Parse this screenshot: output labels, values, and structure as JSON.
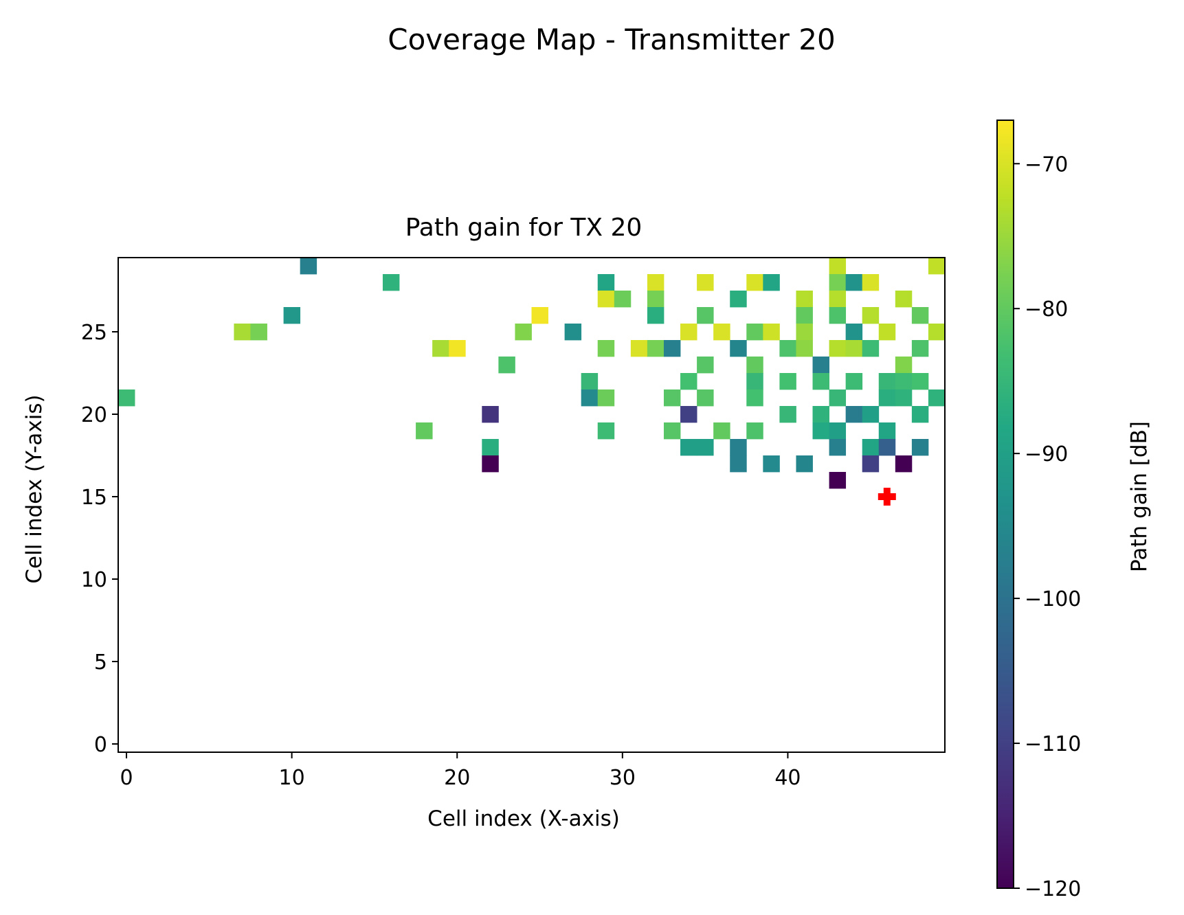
{
  "figure_title": "Coverage Map - Transmitter 20",
  "colormap": "viridis",
  "tx_marker_color": "#ff0000",
  "chart_data": {
    "type": "heatmap",
    "title": "Path gain for TX 20",
    "xlabel": "Cell index (X-axis)",
    "ylabel": "Cell index (Y-axis)",
    "xlim": [
      -0.5,
      49.5
    ],
    "ylim": [
      -0.5,
      29.5
    ],
    "x_ticks": [
      0,
      10,
      20,
      30,
      40
    ],
    "y_ticks": [
      0,
      5,
      10,
      15,
      20,
      25
    ],
    "x_tick_labels": [
      "0",
      "10",
      "20",
      "30",
      "40"
    ],
    "y_tick_labels": [
      "0",
      "5",
      "10",
      "15",
      "20",
      "25"
    ],
    "colorbar": {
      "label": "Path gain [dB]",
      "range": [
        -120,
        -67
      ],
      "ticks": [
        -70,
        -80,
        -90,
        -100,
        -110,
        -120
      ],
      "tick_labels": [
        "−70",
        "−80",
        "−90",
        "−100",
        "−110",
        "−120"
      ]
    },
    "transmitter": {
      "x": 46,
      "y": 15,
      "marker": "plus"
    },
    "cells": [
      [
        11,
        29,
        -97
      ],
      [
        43,
        29,
        -72
      ],
      [
        49,
        29,
        -72
      ],
      [
        16,
        28,
        -86
      ],
      [
        29,
        28,
        -89
      ],
      [
        32,
        28,
        -70
      ],
      [
        35,
        28,
        -70
      ],
      [
        38,
        28,
        -70
      ],
      [
        39,
        28,
        -89
      ],
      [
        43,
        28,
        -78
      ],
      [
        44,
        28,
        -93
      ],
      [
        45,
        28,
        -70
      ],
      [
        29,
        27,
        -70
      ],
      [
        30,
        27,
        -79
      ],
      [
        32,
        27,
        -78
      ],
      [
        37,
        27,
        -87
      ],
      [
        41,
        27,
        -73
      ],
      [
        43,
        27,
        -73
      ],
      [
        47,
        27,
        -73
      ],
      [
        10,
        26,
        -92
      ],
      [
        25,
        26,
        -68
      ],
      [
        32,
        26,
        -87
      ],
      [
        35,
        26,
        -81
      ],
      [
        41,
        26,
        -80
      ],
      [
        43,
        26,
        -82
      ],
      [
        45,
        26,
        -73
      ],
      [
        48,
        26,
        -80
      ],
      [
        7,
        25,
        -74
      ],
      [
        8,
        25,
        -78
      ],
      [
        24,
        25,
        -77
      ],
      [
        27,
        25,
        -94
      ],
      [
        34,
        25,
        -70
      ],
      [
        36,
        25,
        -70
      ],
      [
        38,
        25,
        -80
      ],
      [
        39,
        25,
        -71
      ],
      [
        41,
        25,
        -75
      ],
      [
        44,
        25,
        -93
      ],
      [
        46,
        25,
        -72
      ],
      [
        49,
        25,
        -73
      ],
      [
        19,
        24,
        -74
      ],
      [
        20,
        24,
        -68
      ],
      [
        29,
        24,
        -78
      ],
      [
        31,
        24,
        -70
      ],
      [
        32,
        24,
        -78
      ],
      [
        33,
        24,
        -97
      ],
      [
        37,
        24,
        -96
      ],
      [
        40,
        24,
        -82
      ],
      [
        41,
        24,
        -76
      ],
      [
        43,
        24,
        -73
      ],
      [
        44,
        24,
        -74
      ],
      [
        45,
        24,
        -84
      ],
      [
        48,
        24,
        -82
      ],
      [
        23,
        23,
        -82
      ],
      [
        35,
        23,
        -81
      ],
      [
        38,
        23,
        -80
      ],
      [
        42,
        23,
        -97
      ],
      [
        47,
        23,
        -77
      ],
      [
        28,
        22,
        -85
      ],
      [
        34,
        22,
        -83
      ],
      [
        38,
        22,
        -85
      ],
      [
        40,
        22,
        -83
      ],
      [
        42,
        22,
        -84
      ],
      [
        44,
        22,
        -84
      ],
      [
        46,
        22,
        -85
      ],
      [
        47,
        22,
        -84
      ],
      [
        48,
        22,
        -83
      ],
      [
        0,
        21,
        -84
      ],
      [
        28,
        21,
        -95
      ],
      [
        29,
        21,
        -79
      ],
      [
        33,
        21,
        -81
      ],
      [
        35,
        21,
        -81
      ],
      [
        38,
        21,
        -83
      ],
      [
        43,
        21,
        -85
      ],
      [
        46,
        21,
        -87
      ],
      [
        47,
        21,
        -86
      ],
      [
        49,
        21,
        -86
      ],
      [
        22,
        20,
        -112
      ],
      [
        34,
        20,
        -110
      ],
      [
        40,
        20,
        -85
      ],
      [
        42,
        20,
        -86
      ],
      [
        44,
        20,
        -98
      ],
      [
        45,
        20,
        -90
      ],
      [
        48,
        20,
        -87
      ],
      [
        18,
        19,
        -80
      ],
      [
        29,
        19,
        -84
      ],
      [
        33,
        19,
        -81
      ],
      [
        36,
        19,
        -80
      ],
      [
        38,
        19,
        -82
      ],
      [
        42,
        19,
        -88
      ],
      [
        43,
        19,
        -90
      ],
      [
        46,
        19,
        -89
      ],
      [
        22,
        18,
        -87
      ],
      [
        34,
        18,
        -90
      ],
      [
        35,
        18,
        -90
      ],
      [
        37,
        18,
        -97
      ],
      [
        43,
        18,
        -97
      ],
      [
        45,
        18,
        -89
      ],
      [
        46,
        18,
        -104
      ],
      [
        48,
        18,
        -97
      ],
      [
        22,
        17,
        -120
      ],
      [
        37,
        17,
        -97
      ],
      [
        39,
        17,
        -95
      ],
      [
        41,
        17,
        -96
      ],
      [
        45,
        17,
        -110
      ],
      [
        47,
        17,
        -120
      ],
      [
        43,
        16,
        -120
      ]
    ]
  }
}
